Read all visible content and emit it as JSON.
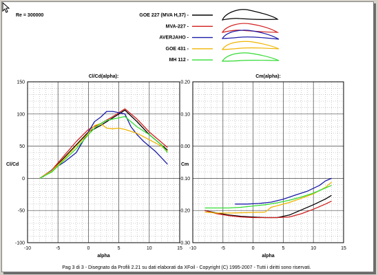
{
  "re_label": "Re = 300000",
  "legend": [
    {
      "name": "GOE 227 (MVA H,37) -",
      "color": "#000000"
    },
    {
      "name": "MVA-227 -",
      "color": "#d21e1e"
    },
    {
      "name": "AVERJAHO -",
      "color": "#1a1aa8"
    },
    {
      "name": "GOE 431 -",
      "color": "#f0b400"
    },
    {
      "name": "MH 112 -",
      "color": "#32dc32"
    }
  ],
  "footer": "Pag 3 di 3  -   Disegnato da Profili 2.21 su dati elaborati da XFoil - Copyright (C) 1995-2007 - Tutti i diritti sono riservati.",
  "chart_data": [
    {
      "type": "line",
      "title": "Cl/Cd(alpha):",
      "xlabel": "alpha",
      "ylabel": "Cl/Cd",
      "xlim": [
        -10,
        15
      ],
      "ylim": [
        -100,
        150
      ],
      "xticks": [
        -10,
        -5,
        0,
        5,
        10,
        15
      ],
      "yticks": [
        -100,
        -50,
        0,
        50,
        100,
        150
      ],
      "yticklabels": [
        "-100",
        "-50",
        "0",
        "50",
        "100",
        "150"
      ],
      "grid": true,
      "series": [
        {
          "name": "GOE 227 (MVA H,37)",
          "color": "#000000",
          "x": [
            -8,
            -6,
            -4,
            -2,
            0,
            2,
            4,
            6,
            8,
            10,
            13
          ],
          "y": [
            0,
            12,
            32,
            52,
            72,
            82,
            94,
            106,
            88,
            68,
            44
          ]
        },
        {
          "name": "MVA-227",
          "color": "#d21e1e",
          "x": [
            -8,
            -6,
            -4,
            -2,
            0,
            2,
            4,
            6,
            8,
            10,
            13
          ],
          "y": [
            0,
            13,
            35,
            57,
            76,
            85,
            96,
            108,
            92,
            72,
            48
          ]
        },
        {
          "name": "AVERJAHO",
          "color": "#1a1aa8",
          "x": [
            -7.5,
            -6,
            -4,
            -2,
            0,
            1,
            2,
            3,
            4,
            5,
            6,
            7,
            8,
            9,
            10,
            11,
            12,
            13
          ],
          "y": [
            2,
            13,
            25,
            40,
            72,
            88,
            95,
            104,
            104,
            102,
            100,
            80,
            68,
            58,
            50,
            42,
            32,
            22
          ]
        },
        {
          "name": "GOE 431",
          "color": "#f0b400",
          "x": [
            -8,
            -6,
            -4,
            -2,
            0,
            1,
            2,
            3,
            4,
            5,
            6,
            8,
            10,
            12,
            13
          ],
          "y": [
            0,
            12,
            30,
            50,
            70,
            82,
            85,
            78,
            77,
            78,
            76,
            70,
            60,
            50,
            42
          ]
        },
        {
          "name": "MH 112",
          "color": "#32dc32",
          "x": [
            -8,
            -6,
            -4,
            -2,
            0,
            1,
            2,
            3,
            4,
            5,
            6,
            8,
            10,
            12,
            13
          ],
          "y": [
            0,
            10,
            28,
            46,
            68,
            78,
            85,
            90,
            92,
            94,
            96,
            80,
            68,
            52,
            40
          ]
        }
      ]
    },
    {
      "type": "line",
      "title": "Cm(alpha):",
      "xlabel": "alpha",
      "ylabel": "Cm",
      "xlim": [
        -10,
        15
      ],
      "ylim": [
        -0.3,
        0.2
      ],
      "xticks": [
        -10,
        -5,
        0,
        5,
        10,
        15
      ],
      "yticks": [
        -0.3,
        -0.2,
        -0.1,
        0.0,
        0.1,
        0.2
      ],
      "yticklabels": [
        "-0.30",
        "-0.20",
        "-0.10",
        "0.00",
        "0.10",
        "0.20"
      ],
      "grid": true,
      "series": [
        {
          "name": "GOE 227 (MVA H,37)",
          "color": "#000000",
          "x": [
            -8,
            -6,
            -4,
            -2,
            0,
            2,
            4,
            6,
            8,
            10,
            12,
            13
          ],
          "y": [
            -0.2,
            -0.208,
            -0.214,
            -0.218,
            -0.22,
            -0.222,
            -0.222,
            -0.214,
            -0.198,
            -0.182,
            -0.164,
            -0.153
          ]
        },
        {
          "name": "MVA-227",
          "color": "#d21e1e",
          "x": [
            -8,
            -6,
            -4,
            -2,
            0,
            2,
            4,
            6,
            8,
            10,
            12,
            13
          ],
          "y": [
            -0.2,
            -0.21,
            -0.216,
            -0.22,
            -0.222,
            -0.222,
            -0.222,
            -0.22,
            -0.21,
            -0.196,
            -0.18,
            -0.171
          ]
        },
        {
          "name": "AVERJAHO",
          "color": "#1a1aa8",
          "x": [
            -3,
            -1,
            1,
            2,
            3,
            5,
            7,
            9,
            11,
            12,
            13
          ],
          "y": [
            -0.18,
            -0.18,
            -0.178,
            -0.176,
            -0.174,
            -0.165,
            -0.152,
            -0.14,
            -0.122,
            -0.108,
            -0.1
          ]
        },
        {
          "name": "GOE 431",
          "color": "#f0b400",
          "x": [
            -8,
            -6,
            -4,
            -2,
            0,
            2,
            3,
            4,
            6,
            8,
            10,
            12,
            13
          ],
          "y": [
            -0.205,
            -0.208,
            -0.208,
            -0.207,
            -0.206,
            -0.205,
            -0.19,
            -0.185,
            -0.175,
            -0.162,
            -0.148,
            -0.128,
            -0.112
          ]
        },
        {
          "name": "MH 112",
          "color": "#32dc32",
          "x": [
            -8,
            -6,
            -4,
            -2,
            0,
            2,
            4,
            6,
            8,
            10,
            12,
            13
          ],
          "y": [
            -0.192,
            -0.192,
            -0.192,
            -0.19,
            -0.186,
            -0.182,
            -0.176,
            -0.168,
            -0.158,
            -0.146,
            -0.13,
            -0.122
          ]
        }
      ]
    }
  ]
}
